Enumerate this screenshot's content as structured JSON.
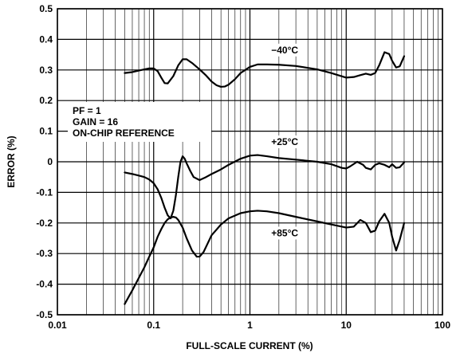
{
  "chart_data": {
    "type": "line",
    "xlabel": "FULL-SCALE CURRENT (%)",
    "ylabel": "ERROR (%)",
    "x_scale": "log",
    "xlim": [
      0.01,
      100
    ],
    "ylim": [
      -0.5,
      0.5
    ],
    "grid": true,
    "x_ticks": [
      "0.01",
      "0.1",
      "1",
      "10",
      "100"
    ],
    "y_ticks": [
      "0.5",
      "0.4",
      "0.3",
      "0.2",
      "0.1",
      "0",
      "-0.1",
      "-0.2",
      "-0.3",
      "-0.4",
      "-0.5"
    ],
    "annotation_lines": [
      "PF = 1",
      "GAIN = 16",
      "ON-CHIP REFERENCE"
    ],
    "series": [
      {
        "name": "−40°C",
        "x": [
          0.05,
          0.06,
          0.07,
          0.08,
          0.09,
          0.1,
          0.11,
          0.12,
          0.13,
          0.14,
          0.16,
          0.18,
          0.2,
          0.22,
          0.25,
          0.3,
          0.35,
          0.4,
          0.45,
          0.5,
          0.55,
          0.6,
          0.7,
          0.8,
          1.0,
          1.2,
          1.5,
          2,
          3,
          5,
          7,
          10,
          12,
          14,
          16,
          18,
          20,
          22,
          25,
          28,
          30,
          33,
          36,
          40
        ],
        "y": [
          0.29,
          0.293,
          0.298,
          0.302,
          0.305,
          0.305,
          0.296,
          0.275,
          0.257,
          0.256,
          0.28,
          0.315,
          0.335,
          0.335,
          0.323,
          0.302,
          0.282,
          0.262,
          0.25,
          0.245,
          0.246,
          0.252,
          0.27,
          0.29,
          0.31,
          0.318,
          0.318,
          0.317,
          0.313,
          0.302,
          0.29,
          0.275,
          0.277,
          0.283,
          0.288,
          0.284,
          0.29,
          0.315,
          0.358,
          0.352,
          0.33,
          0.308,
          0.312,
          0.345
        ]
      },
      {
        "name": "+25°C",
        "x": [
          0.05,
          0.06,
          0.07,
          0.08,
          0.09,
          0.1,
          0.11,
          0.12,
          0.13,
          0.14,
          0.15,
          0.16,
          0.17,
          0.18,
          0.19,
          0.2,
          0.21,
          0.22,
          0.24,
          0.26,
          0.3,
          0.35,
          0.4,
          0.5,
          0.6,
          0.8,
          1.0,
          1.2,
          1.5,
          2,
          3,
          5,
          7,
          9,
          10,
          11,
          13,
          15,
          16,
          18,
          20,
          22,
          25,
          28,
          30,
          33,
          36,
          40
        ],
        "y": [
          -0.035,
          -0.04,
          -0.045,
          -0.05,
          -0.058,
          -0.07,
          -0.09,
          -0.118,
          -0.15,
          -0.175,
          -0.185,
          -0.16,
          -0.11,
          -0.05,
          0.0,
          0.018,
          0.01,
          -0.005,
          -0.03,
          -0.05,
          -0.06,
          -0.05,
          -0.04,
          -0.025,
          -0.01,
          0.01,
          0.02,
          0.022,
          0.018,
          0.012,
          0.007,
          0.0,
          -0.008,
          -0.02,
          -0.022,
          -0.015,
          0.0,
          -0.01,
          -0.02,
          -0.025,
          -0.01,
          -0.005,
          -0.01,
          -0.018,
          -0.008,
          -0.02,
          -0.018,
          -0.002
        ]
      },
      {
        "name": "+85°C",
        "x": [
          0.05,
          0.06,
          0.07,
          0.08,
          0.09,
          0.1,
          0.11,
          0.12,
          0.13,
          0.14,
          0.15,
          0.16,
          0.17,
          0.18,
          0.2,
          0.22,
          0.25,
          0.28,
          0.3,
          0.33,
          0.36,
          0.4,
          0.5,
          0.6,
          0.8,
          1.0,
          1.2,
          1.5,
          2,
          3,
          5,
          7,
          10,
          12,
          14,
          16,
          18,
          20,
          22,
          25,
          28,
          30,
          33,
          36,
          40
        ],
        "y": [
          -0.465,
          -0.42,
          -0.38,
          -0.345,
          -0.31,
          -0.28,
          -0.245,
          -0.22,
          -0.2,
          -0.188,
          -0.182,
          -0.18,
          -0.182,
          -0.19,
          -0.215,
          -0.25,
          -0.29,
          -0.31,
          -0.31,
          -0.295,
          -0.27,
          -0.24,
          -0.205,
          -0.185,
          -0.168,
          -0.162,
          -0.16,
          -0.162,
          -0.168,
          -0.18,
          -0.195,
          -0.205,
          -0.215,
          -0.212,
          -0.19,
          -0.2,
          -0.23,
          -0.225,
          -0.195,
          -0.17,
          -0.2,
          -0.245,
          -0.29,
          -0.255,
          -0.2
        ]
      }
    ],
    "series_label_positions": [
      {
        "x": 2.3,
        "y": 0.365
      },
      {
        "x": 2.3,
        "y": 0.065
      },
      {
        "x": 2.3,
        "y": -0.233
      }
    ]
  }
}
